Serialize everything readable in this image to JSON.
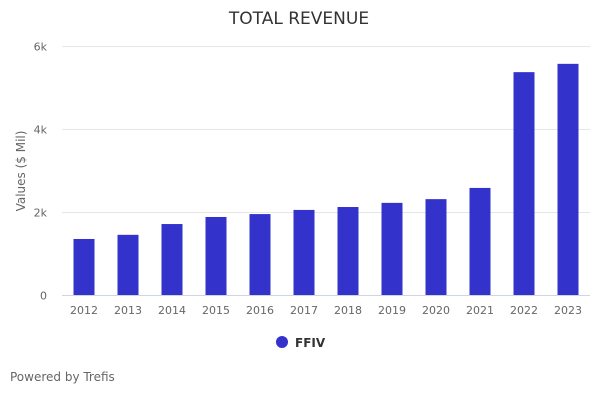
{
  "chart_data": {
    "type": "bar",
    "title": "TOTAL REVENUE",
    "xlabel": "",
    "ylabel": "Values ($ Mil)",
    "categories": [
      "2012",
      "2013",
      "2014",
      "2015",
      "2016",
      "2017",
      "2018",
      "2019",
      "2020",
      "2021",
      "2022",
      "2023"
    ],
    "series": [
      {
        "name": "FFIV",
        "color": "#3333cc",
        "values": [
          1350,
          1450,
          1710,
          1880,
          1950,
          2050,
          2120,
          2220,
          2310,
          2580,
          5370,
          5570
        ]
      }
    ],
    "ylim": [
      0,
      6000
    ],
    "yticks": [
      0,
      2000,
      4000,
      6000
    ],
    "ytick_labels": [
      "0",
      "2k",
      "4k",
      "6k"
    ],
    "grid": true,
    "legend": "bottom-center"
  },
  "footer": {
    "credit": "Powered by Trefis"
  }
}
